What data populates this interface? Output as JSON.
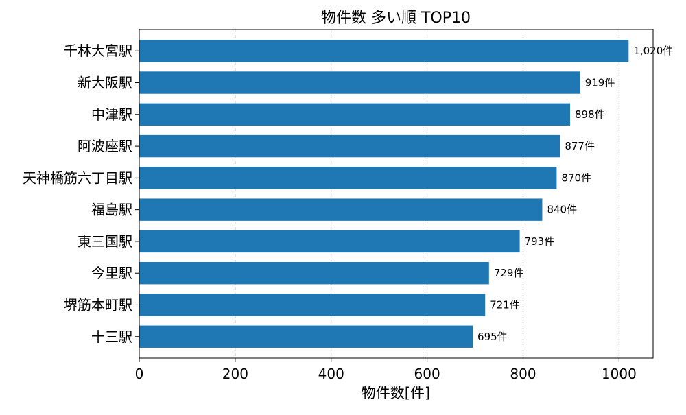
{
  "chart_data": {
    "type": "bar",
    "orientation": "horizontal",
    "title": "物件数 多い順 TOP10",
    "xlabel": "物件数[件]",
    "ylabel": "",
    "xlim": [
      0,
      1071
    ],
    "xticks": [
      0,
      200,
      400,
      600,
      800,
      1000
    ],
    "xtick_labels": [
      "0",
      "200",
      "400",
      "600",
      "800",
      "1000"
    ],
    "grid": "x-dashed",
    "bar_color": "#1f77b4",
    "categories": [
      "千林大宮駅",
      "新大阪駅",
      "中津駅",
      "阿波座駅",
      "天神橋筋六丁目駅",
      "福島駅",
      "東三国駅",
      "今里駅",
      "堺筋本町駅",
      "十三駅"
    ],
    "values": [
      1020,
      919,
      898,
      877,
      870,
      840,
      793,
      729,
      721,
      695
    ],
    "data_labels": [
      "1,020件",
      "919件",
      "898件",
      "877件",
      "870件",
      "840件",
      "793件",
      "729件",
      "721件",
      "695件"
    ]
  }
}
